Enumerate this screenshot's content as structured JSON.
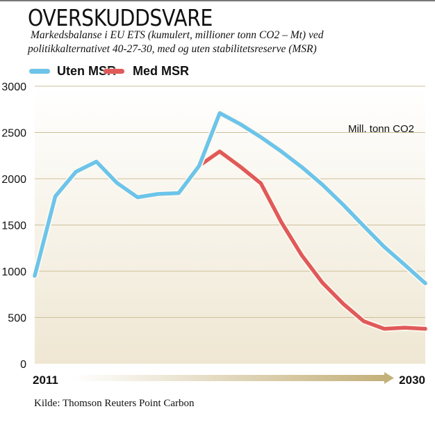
{
  "title": "OVERSKUDDSVARE",
  "subtitle_line1": "Markedsbalanse i EU ETS (kumulert, millioner tonn CO2 – Mt) ved",
  "subtitle_line2": "politikkalternativet 40-27-30, med og uten stabilitetsreserve (MSR)",
  "source": "Kilde: Thomson Reuters Point Carbon",
  "chart_data": {
    "type": "line",
    "unit_label": "Mill. tonn CO2",
    "x_start_label": "2011",
    "x_end_label": "2030",
    "x": [
      2011,
      2012,
      2013,
      2014,
      2015,
      2016,
      2017,
      2018,
      2019,
      2020,
      2021,
      2022,
      2023,
      2024,
      2025,
      2026,
      2027,
      2028,
      2029,
      2030
    ],
    "ylim": [
      0,
      3000
    ],
    "yticks": [
      "0",
      "500",
      "1000",
      "1500",
      "2000",
      "2500",
      "3000"
    ],
    "grid": true,
    "legend_position": "top-left",
    "series": [
      {
        "name": "Uten MSR",
        "color": "#6cc4ea",
        "values": [
          950,
          1810,
          2075,
          2185,
          1955,
          1800,
          1835,
          1845,
          2140,
          2710,
          2590,
          2450,
          2295,
          2125,
          1935,
          1720,
          1490,
          1265,
          1070,
          870
        ]
      },
      {
        "name": "Med MSR",
        "color": "#e05a5a",
        "values": [
          null,
          null,
          null,
          null,
          null,
          null,
          null,
          null,
          2140,
          2295,
          2130,
          1950,
          1530,
          1170,
          875,
          650,
          460,
          378,
          390,
          378
        ]
      }
    ]
  }
}
